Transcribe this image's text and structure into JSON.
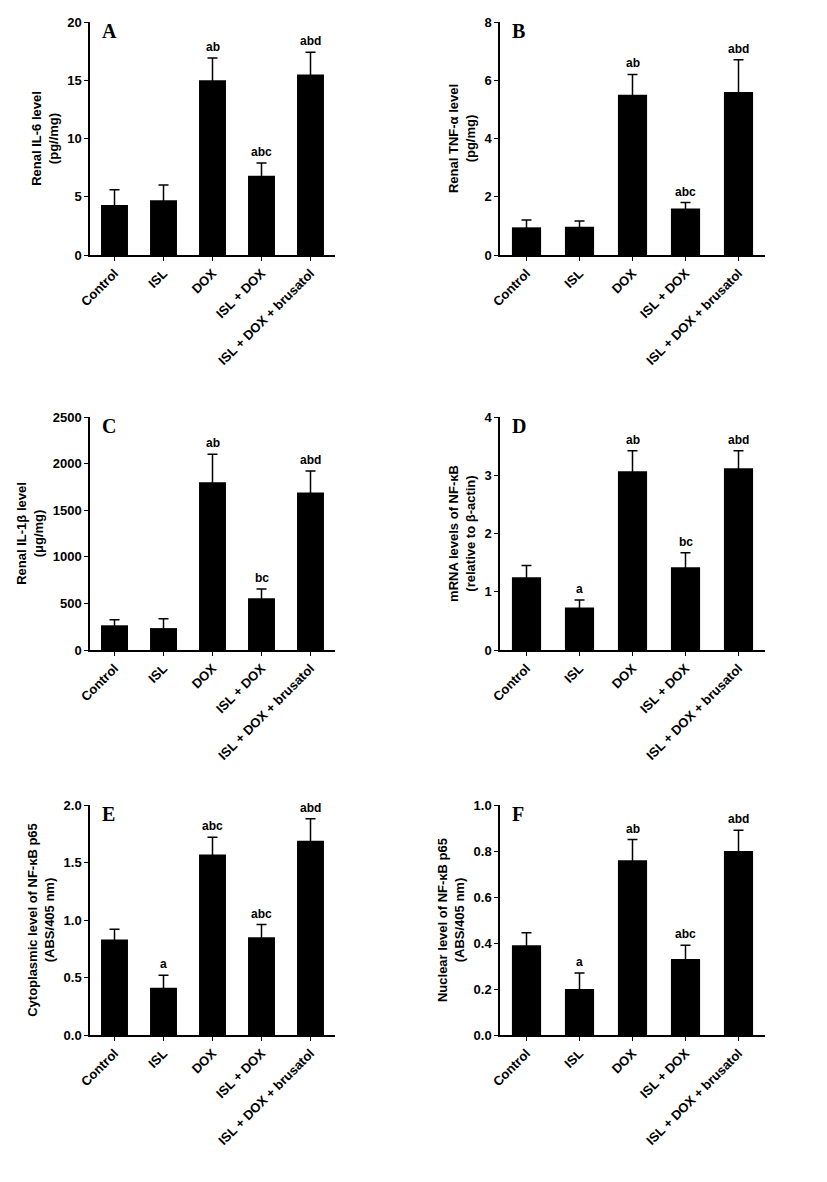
{
  "chart_data": [
    {
      "type": "bar",
      "title": "A",
      "y_label": "Renal IL-6 level\n(pg//mg)",
      "categories": [
        "Control",
        "ISL",
        "DOX",
        "ISL + DOX",
        "ISL + DOX + brusatol"
      ],
      "values": [
        4.3,
        4.7,
        15.0,
        6.8,
        15.5
      ],
      "errors": [
        1.3,
        1.3,
        1.9,
        1.1,
        1.9
      ],
      "annotations": [
        null,
        null,
        "ab",
        "abc",
        "abd"
      ],
      "color": "#000000",
      "ylim": [
        0,
        20
      ],
      "yticks": [
        0,
        5,
        10,
        15,
        20
      ],
      "grid": false
    },
    {
      "type": "bar",
      "title": "B",
      "y_label": "Renal TNF-α level\n(pg/mg)",
      "categories": [
        "Control",
        "ISL",
        "DOX",
        "ISL + DOX",
        "ISL + DOX + brusatol"
      ],
      "values": [
        0.95,
        0.97,
        5.5,
        1.6,
        5.6
      ],
      "errors": [
        0.25,
        0.2,
        0.7,
        0.2,
        1.1
      ],
      "annotations": [
        null,
        null,
        "ab",
        "abc",
        "abd"
      ],
      "color": "#000000",
      "ylim": [
        0,
        8
      ],
      "yticks": [
        0,
        2,
        4,
        6,
        8
      ],
      "grid": false
    },
    {
      "type": "bar",
      "title": "C",
      "y_label": "Renal IL-1β level\n(μg/mg)",
      "categories": [
        "Control",
        "ISL",
        "DOX",
        "ISL + DOX",
        "ISL + DOX + brusatol"
      ],
      "values": [
        265,
        235,
        1800,
        555,
        1690
      ],
      "errors": [
        60,
        100,
        300,
        100,
        230
      ],
      "annotations": [
        null,
        null,
        "ab",
        "bc",
        "abd"
      ],
      "color": "#000000",
      "ylim": [
        0,
        2500
      ],
      "yticks": [
        0,
        500,
        1000,
        1500,
        2000,
        2500
      ],
      "grid": false
    },
    {
      "type": "bar",
      "title": "D",
      "y_label": "mRNA levels of NF-κB\n(relative to β-actin)",
      "categories": [
        "Control",
        "ISL",
        "DOX",
        "ISL + DOX",
        "ISL + DOX + brusatol"
      ],
      "values": [
        1.25,
        0.73,
        3.07,
        1.42,
        3.12
      ],
      "errors": [
        0.2,
        0.13,
        0.35,
        0.25,
        0.3
      ],
      "annotations": [
        null,
        "a",
        "ab",
        "bc",
        "abd"
      ],
      "color": "#000000",
      "ylim": [
        0,
        4
      ],
      "yticks": [
        0,
        1,
        2,
        3,
        4
      ],
      "grid": false
    },
    {
      "type": "bar",
      "title": "E",
      "y_label": "Cytoplasmic level of NF-κB p65\n(ABS/405 nm)",
      "categories": [
        "Control",
        "ISL",
        "DOX",
        "ISL + DOX",
        "ISL + DOX + brusatol"
      ],
      "values": [
        0.83,
        0.41,
        1.57,
        0.85,
        1.69
      ],
      "errors": [
        0.09,
        0.11,
        0.15,
        0.11,
        0.19
      ],
      "annotations": [
        null,
        "a",
        "abc",
        "abc",
        "abd"
      ],
      "color": "#000000",
      "ylim": [
        0,
        2.0
      ],
      "yticks": [
        {
          "value": 0,
          "label": "0.0"
        },
        {
          "value": 0.5,
          "label": "0.5"
        },
        {
          "value": 1,
          "label": "1.0"
        },
        {
          "value": 1.5,
          "label": "1.5"
        },
        {
          "value": 2,
          "label": "2.0"
        }
      ],
      "grid": false
    },
    {
      "type": "bar",
      "title": "F",
      "y_label": "Nuclear level of NF-κB p65\n(ABS/405 nm)",
      "categories": [
        "Control",
        "ISL",
        "DOX",
        "ISL + DOX",
        "ISL + DOX + brusatol"
      ],
      "values": [
        0.39,
        0.2,
        0.76,
        0.33,
        0.8
      ],
      "errors": [
        0.055,
        0.07,
        0.09,
        0.06,
        0.09
      ],
      "annotations": [
        null,
        "a",
        "ab",
        "abc",
        "abd"
      ],
      "color": "#000000",
      "ylim": [
        0,
        1.0
      ],
      "yticks": [
        {
          "value": 0,
          "label": "0.0"
        },
        {
          "value": 0.2,
          "label": "0.2"
        },
        {
          "value": 0.4,
          "label": "0.4"
        },
        {
          "value": 0.6,
          "label": "0.6"
        },
        {
          "value": 0.8,
          "label": "0.8"
        },
        {
          "value": 1,
          "label": "1.0"
        }
      ],
      "grid": false
    }
  ]
}
